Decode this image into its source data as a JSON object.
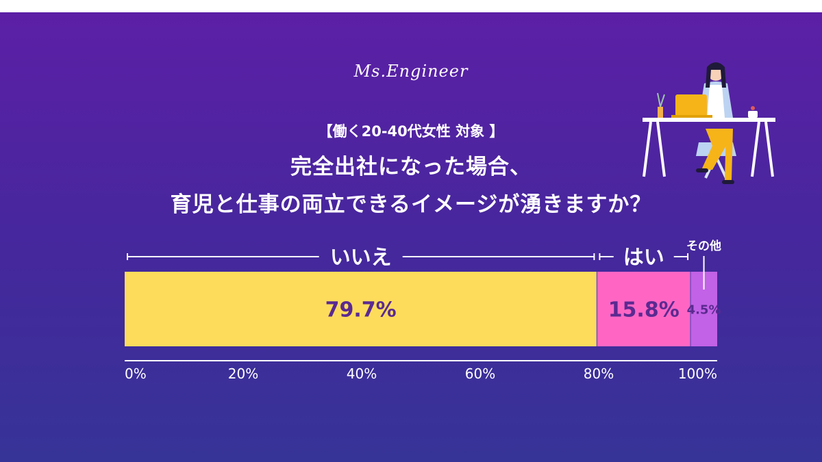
{
  "brand": "Ms.Engineer",
  "chart_data": {
    "type": "bar",
    "orientation": "horizontal-stacked",
    "subtitle": "【働く20-40代女性 対象 】",
    "title_lines": [
      "完全出社になった場合、",
      "育児と仕事の両立できるイメージが湧きますか？"
    ],
    "series": [
      {
        "name": "いいえ",
        "value": 79.7,
        "label": "79.7%",
        "color": "#fddc5c"
      },
      {
        "name": "はい",
        "value": 15.8,
        "label": "15.8%",
        "color": "#ff66c4"
      },
      {
        "name": "その他",
        "value": 4.5,
        "label": "4.5%",
        "color": "#c262e6"
      }
    ],
    "xlim": [
      0,
      100
    ],
    "ticks": [
      "0%",
      "20%",
      "40%",
      "60%",
      "80%",
      "100%"
    ],
    "colors": {
      "value_text": "#5b2a91",
      "axis": "#ffffff"
    }
  }
}
